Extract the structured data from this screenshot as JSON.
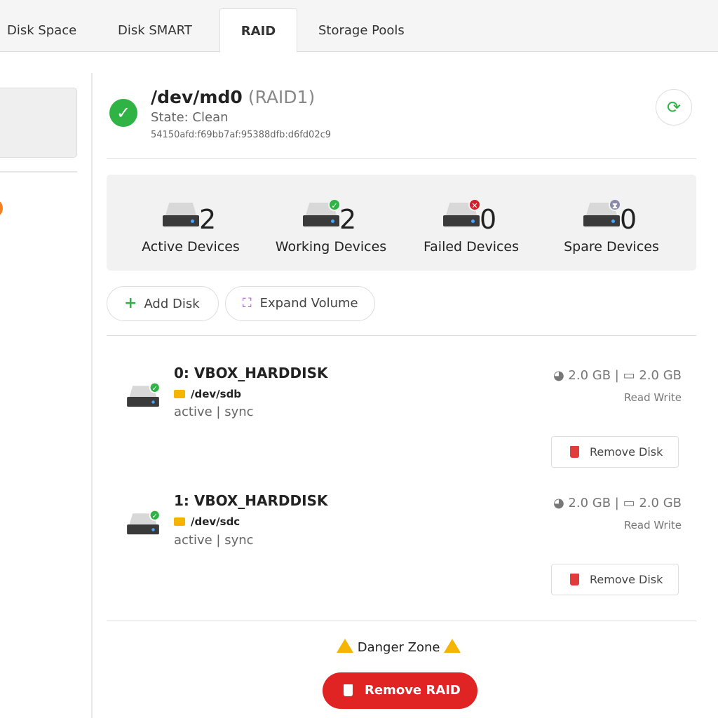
{
  "tabs": [
    {
      "label": "Disk Space"
    },
    {
      "label": "Disk SMART"
    },
    {
      "label": "RAID",
      "active": true
    },
    {
      "label": "Storage Pools"
    }
  ],
  "raid": {
    "device": "/dev/md0",
    "level": "(RAID1)",
    "state": "State: Clean",
    "uuid": "54150afd:f69bb7af:95388dfb:d6fd02c9"
  },
  "stats": [
    {
      "value": "2",
      "label": "Active Devices",
      "badge": "none"
    },
    {
      "value": "2",
      "label": "Working Devices",
      "badge": "check"
    },
    {
      "value": "0",
      "label": "Failed Devices",
      "badge": "x"
    },
    {
      "value": "0",
      "label": "Spare Devices",
      "badge": "hourglass"
    }
  ],
  "actions": {
    "add_disk": "Add Disk",
    "expand_volume": "Expand Volume"
  },
  "disks": [
    {
      "name": "0: VBOX_HARDDISK",
      "path": "/dev/sdb",
      "status": "active | sync",
      "used": "2.0 GB",
      "size": "2.0 GB",
      "mode": "Read Write",
      "remove": "Remove Disk"
    },
    {
      "name": "1: VBOX_HARDDISK",
      "path": "/dev/sdc",
      "status": "active | sync",
      "used": "2.0 GB",
      "size": "2.0 GB",
      "mode": "Read Write",
      "remove": "Remove Disk"
    }
  ],
  "danger": {
    "title": "Danger Zone",
    "remove_raid": "Remove RAID"
  },
  "colors": {
    "success": "#2fb344",
    "danger": "#e02424",
    "warning": "#f5b400",
    "accent": "#f58220"
  }
}
